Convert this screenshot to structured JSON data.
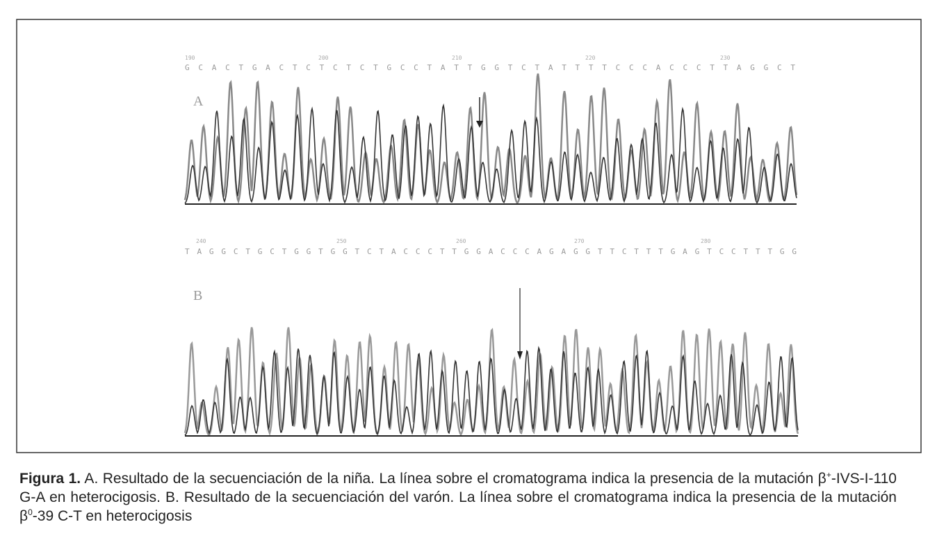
{
  "figure": {
    "panel_a": {
      "label": "A",
      "positions": [
        "190",
        "200",
        "210",
        "220",
        "230"
      ],
      "sequence": "GCACTGACTCTCTCTGCCTATTGGTCTATTTTCCCACCCTTAGGCT"
    },
    "panel_b": {
      "label": "B",
      "positions": [
        "240",
        "250",
        "260",
        "270",
        "280"
      ],
      "sequence": "TAGGCTGCTGGTGGTCTACCCTTGGACCCAGAGGTTCTTTGAGTCCTTTGG"
    }
  },
  "caption": {
    "label": "Figura 1.",
    "text_1": " A. Resultado de la secuenciación de la niña. La línea sobre el cromatograma indica la presencia de la mutación β",
    "sup_1": "+",
    "text_2": "-IVS-I-110 G-A en heterocigosis. B. Resultado de la secuenciación del varón. La línea sobre el cromatograma indica la presencia de la mutación β",
    "sup_2": "0",
    "text_3": "-39 C-T en heterocigosis"
  }
}
